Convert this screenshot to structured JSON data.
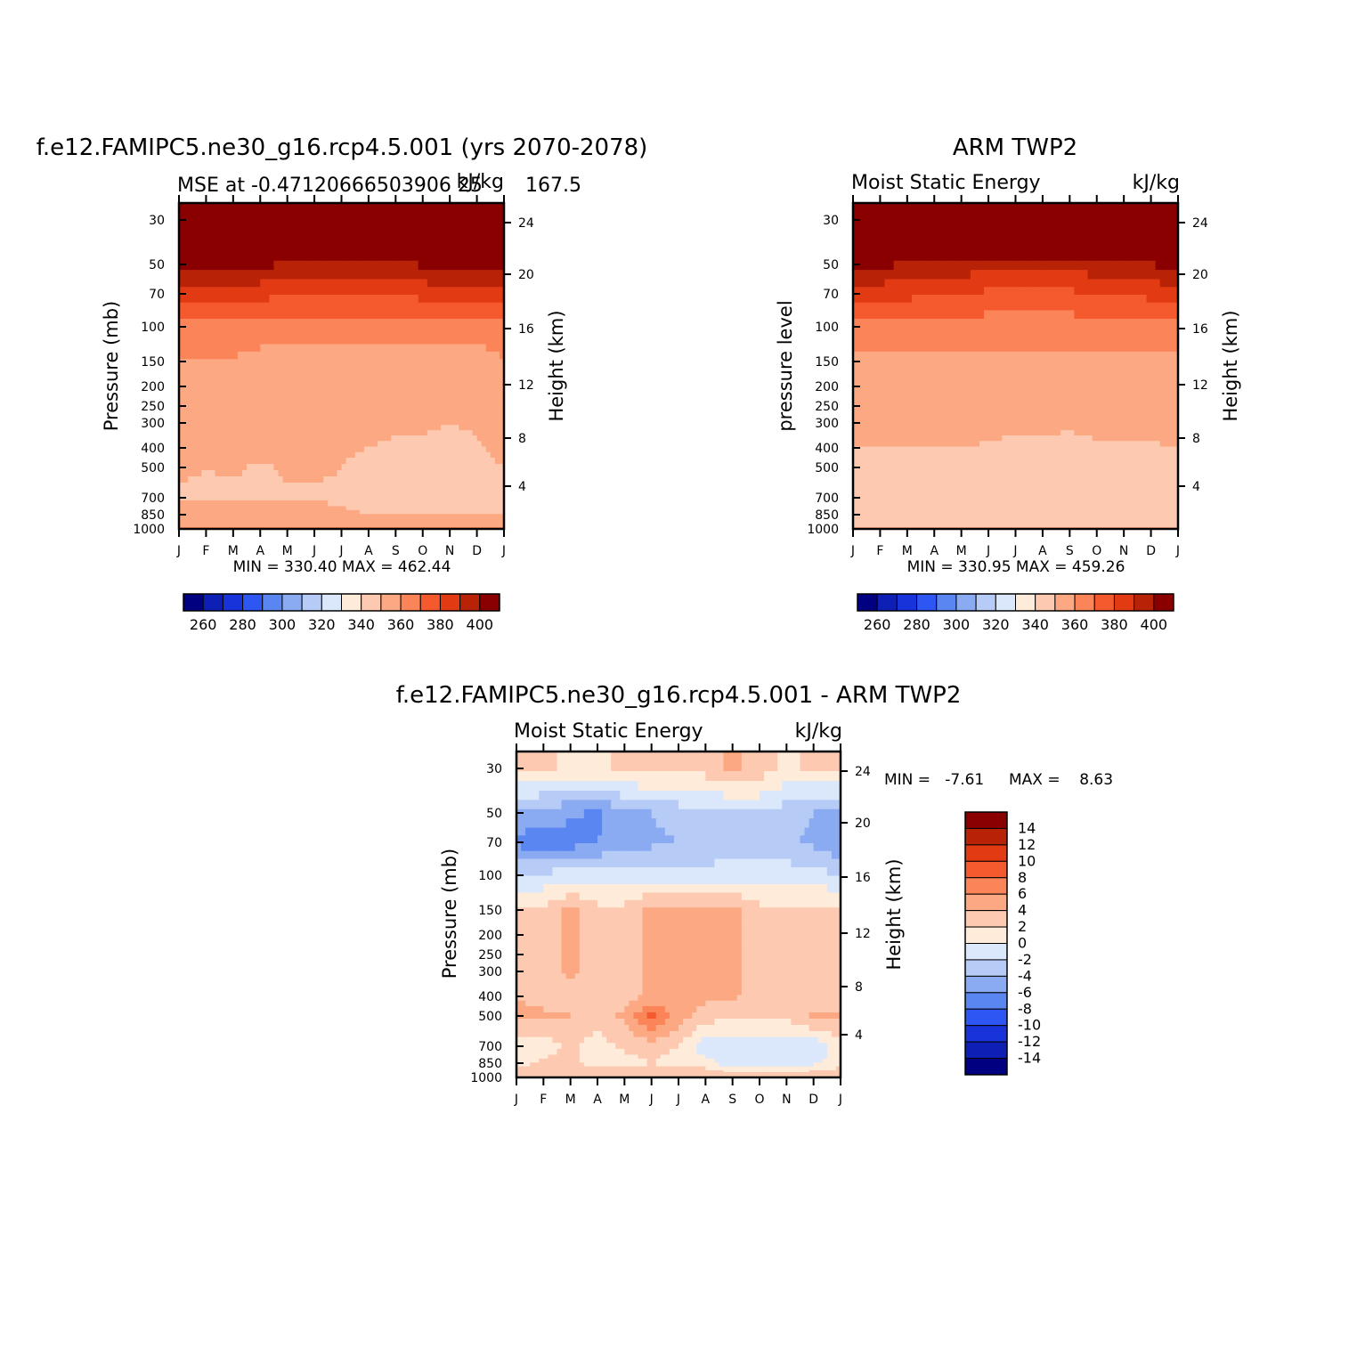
{
  "chart_data": [
    {
      "type": "contour",
      "title": "f.e12.FAMIPC5.ne30_g16.rcp4.5.001 (yrs 2070-2078)",
      "subtitle_left": "MSE at -0.47120666503906 25",
      "subtitle_mid": "167.5",
      "subtitle_right": "kJ/kg",
      "ylabel": "Pressure (mb)",
      "ylabel_right": "Height (km)",
      "months": [
        "J",
        "F",
        "M",
        "A",
        "M",
        "J",
        "J",
        "A",
        "S",
        "O",
        "N",
        "D",
        "J"
      ],
      "pressure_ticks": [
        "30",
        "50",
        "70",
        "100",
        "150",
        "200",
        "250",
        "300",
        "400",
        "500",
        "700",
        "850",
        "1000"
      ],
      "height_ticks": [
        "24",
        "20",
        "16",
        "12",
        "8",
        "4"
      ],
      "stats": "MIN = 330.40   MAX = 462.44",
      "colorbar_labels": [
        "260",
        "280",
        "300",
        "320",
        "340",
        "360",
        "380",
        "400"
      ],
      "colors": [
        "#000080",
        "#0d1fb4",
        "#1733d9",
        "#2d56f2",
        "#5a86f2",
        "#8aaaf2",
        "#b6cbf6",
        "#dbe8fb",
        "#feebd9",
        "#fdc9b0",
        "#fca882",
        "#fb8558",
        "#f55a2f",
        "#e23a12",
        "#b82307",
        "#8a0000"
      ],
      "contour_levels": [
        250,
        260,
        270,
        280,
        290,
        300,
        310,
        320,
        330,
        340,
        350,
        360,
        370,
        380,
        390,
        400
      ],
      "pressure_levels": [
        30,
        50,
        70,
        100,
        150,
        200,
        250,
        300,
        400,
        500,
        700,
        850,
        1000
      ],
      "values": [
        [
          460,
          460,
          460,
          460,
          460,
          460,
          460,
          460,
          460,
          460,
          460,
          460,
          460
        ],
        [
          396,
          395,
          394,
          392,
          389,
          386,
          386,
          386,
          388,
          391,
          393,
          395,
          396
        ],
        [
          377,
          376,
          375,
          373,
          371,
          369,
          369,
          369,
          371,
          373,
          375,
          376,
          377
        ],
        [
          357,
          356,
          356,
          356,
          356,
          356,
          356,
          356,
          356,
          355,
          355,
          356,
          357
        ],
        [
          349,
          349,
          349,
          346,
          344,
          344,
          344,
          344,
          344,
          343,
          342,
          344,
          350
        ],
        [
          347,
          347,
          347,
          346,
          345,
          345,
          345,
          345,
          345,
          344,
          344,
          345,
          347
        ],
        [
          346,
          346,
          346,
          345,
          344,
          344,
          344,
          343,
          343,
          342,
          342,
          343,
          346
        ],
        [
          345,
          345,
          345,
          344,
          344,
          344,
          343,
          342,
          341,
          341,
          340,
          341,
          345
        ],
        [
          344,
          344,
          344,
          343,
          342,
          342,
          341,
          340,
          339,
          339,
          338,
          339,
          343
        ],
        [
          341,
          340,
          341,
          339,
          341,
          341,
          340,
          338,
          337,
          337,
          336,
          337,
          340
        ],
        [
          339,
          339,
          338,
          339,
          339,
          339,
          339,
          338,
          336,
          336,
          336,
          336,
          338
        ],
        [
          345,
          344,
          344,
          344,
          344,
          343,
          341,
          340,
          340,
          340,
          340,
          340,
          340
        ],
        [
          351,
          351,
          351,
          351,
          351,
          351,
          351,
          351,
          351,
          351,
          351,
          351,
          351
        ]
      ],
      "colorbar_levels_shown": [
        260,
        280,
        300,
        320,
        340,
        360,
        380,
        400
      ]
    },
    {
      "type": "contour",
      "title": "ARM TWP2",
      "subtitle_left": "Moist Static Energy",
      "subtitle_right": "kJ/kg",
      "ylabel": "pressure level",
      "ylabel_right": "Height (km)",
      "months": [
        "J",
        "F",
        "M",
        "A",
        "M",
        "J",
        "J",
        "A",
        "S",
        "O",
        "N",
        "D",
        "J"
      ],
      "pressure_ticks": [
        "30",
        "50",
        "70",
        "100",
        "150",
        "200",
        "250",
        "300",
        "400",
        "500",
        "700",
        "850",
        "1000"
      ],
      "height_ticks": [
        "24",
        "20",
        "16",
        "12",
        "8",
        "4"
      ],
      "stats": "MIN = 330.95   MAX = 459.26",
      "colorbar_labels": [
        "260",
        "280",
        "300",
        "320",
        "340",
        "360",
        "380",
        "400"
      ],
      "colors": [
        "#000080",
        "#0d1fb4",
        "#1733d9",
        "#2d56f2",
        "#5a86f2",
        "#8aaaf2",
        "#b6cbf6",
        "#dbe8fb",
        "#feebd9",
        "#fdc9b0",
        "#fca882",
        "#fb8558",
        "#f55a2f",
        "#e23a12",
        "#b82307",
        "#8a0000"
      ],
      "contour_levels": [
        250,
        260,
        270,
        280,
        290,
        300,
        310,
        320,
        330,
        340,
        350,
        360,
        370,
        380,
        390,
        400
      ],
      "pressure_levels": [
        30,
        50,
        70,
        100,
        150,
        200,
        250,
        300,
        400,
        500,
        700,
        850,
        1000
      ],
      "values": [
        [
          459,
          459,
          459,
          459,
          459,
          459,
          459,
          459,
          459,
          459,
          459,
          459,
          459
        ],
        [
          392,
          391,
          390,
          388,
          386,
          384,
          384,
          383,
          384,
          386,
          388,
          390,
          392
        ],
        [
          375,
          374,
          373,
          371,
          370,
          368,
          368,
          367,
          368,
          370,
          371,
          373,
          375
        ],
        [
          355,
          355,
          355,
          355,
          355,
          355,
          355,
          355,
          355,
          355,
          355,
          355,
          355
        ],
        [
          348,
          348,
          348,
          348,
          348,
          348,
          348,
          348,
          348,
          348,
          348,
          348,
          348
        ],
        [
          346,
          346,
          346,
          346,
          346,
          346,
          346,
          346,
          346,
          346,
          346,
          346,
          346
        ],
        [
          345,
          345,
          345,
          345,
          345,
          345,
          345,
          345,
          345,
          345,
          345,
          345,
          345
        ],
        [
          343,
          343,
          343,
          343,
          343,
          343,
          342,
          342,
          341,
          342,
          342,
          343,
          343
        ],
        [
          340,
          340,
          340,
          340,
          340,
          339,
          338,
          338,
          338,
          339,
          339,
          339,
          340
        ],
        [
          337,
          337,
          337,
          337,
          337,
          337,
          336,
          336,
          336,
          336,
          336,
          336,
          337
        ],
        [
          336,
          336,
          336,
          336,
          336,
          336,
          336,
          336,
          336,
          336,
          336,
          336,
          336
        ],
        [
          335,
          335,
          335,
          335,
          335,
          335,
          335,
          335,
          335,
          335,
          335,
          335,
          335
        ],
        [
          341,
          341,
          341,
          341,
          341,
          341,
          341,
          341,
          341,
          341,
          341,
          341,
          341
        ]
      ],
      "colorbar_levels_shown": [
        260,
        280,
        300,
        320,
        340,
        360,
        380,
        400
      ]
    },
    {
      "type": "contour",
      "title": "f.e12.FAMIPC5.ne30_g16.rcp4.5.001 - ARM TWP2",
      "subtitle_left": "Moist Static Energy",
      "subtitle_right": "kJ/kg",
      "ylabel": "Pressure (mb)",
      "ylabel_right": "Height (km)",
      "months": [
        "J",
        "F",
        "M",
        "A",
        "M",
        "J",
        "J",
        "A",
        "S",
        "O",
        "N",
        "D",
        "J"
      ],
      "pressure_ticks": [
        "30",
        "50",
        "70",
        "100",
        "150",
        "200",
        "250",
        "300",
        "400",
        "500",
        "700",
        "850",
        "1000"
      ],
      "height_ticks": [
        "24",
        "20",
        "16",
        "12",
        "8",
        "4"
      ],
      "stats_min": "MIN =   -7.61",
      "stats_max": "MAX =    8.63",
      "colorbar_labels": [
        "14",
        "12",
        "10",
        "8",
        "6",
        "4",
        "2",
        "0",
        "-2",
        "-4",
        "-6",
        "-8",
        "-10",
        "-12",
        "-14"
      ],
      "colors_top_to_bottom": [
        "#8a0000",
        "#b82307",
        "#e23a12",
        "#f55a2f",
        "#fb8558",
        "#fca882",
        "#fdc9b0",
        "#feebd9",
        "#dbe8fb",
        "#b6cbf6",
        "#8aaaf2",
        "#5a86f2",
        "#2d56f2",
        "#1733d9",
        "#0d1fb4",
        "#000080"
      ],
      "contour_levels": [
        -14,
        -12,
        -10,
        -8,
        -6,
        -4,
        -2,
        0,
        2,
        4,
        6,
        8,
        10,
        12,
        14
      ],
      "pressure_levels": [
        30,
        50,
        70,
        100,
        150,
        200,
        250,
        300,
        400,
        500,
        700,
        850,
        1000
      ],
      "values": [
        [
          2.5,
          2.5,
          1.5,
          1.5,
          2.5,
          3.0,
          2.5,
          3.0,
          4.5,
          3.0,
          1.5,
          2.5,
          2.5
        ],
        [
          -4.5,
          -5.0,
          -5.5,
          -6.5,
          -4.5,
          -4.0,
          -3.0,
          -3.0,
          -2.5,
          -2.0,
          -3.0,
          -4.0,
          -4.5
        ],
        [
          -6.5,
          -7.5,
          -7.0,
          -6.0,
          -5.0,
          -4.5,
          -4.0,
          -4.0,
          -3.0,
          -3.5,
          -3.5,
          -4.5,
          -6.0
        ],
        [
          -2.0,
          -1.5,
          -1.0,
          -1.0,
          -1.0,
          -1.0,
          -1.0,
          -1.0,
          -1.0,
          -1.0,
          -1.0,
          -1.0,
          -2.0
        ],
        [
          2.5,
          2.5,
          4.5,
          2.5,
          2.5,
          4.5,
          5.0,
          4.5,
          4.5,
          2.5,
          2.5,
          2.5,
          2.5
        ],
        [
          2.5,
          2.5,
          5.0,
          2.5,
          2.5,
          5.0,
          5.0,
          5.0,
          5.0,
          2.5,
          2.5,
          2.5,
          2.5
        ],
        [
          2.5,
          2.5,
          4.5,
          2.5,
          2.5,
          4.5,
          5.0,
          5.0,
          4.5,
          2.5,
          2.5,
          2.5,
          2.5
        ],
        [
          2.5,
          2.5,
          4.5,
          3.0,
          2.5,
          4.5,
          5.0,
          5.0,
          4.5,
          2.5,
          2.5,
          2.5,
          2.5
        ],
        [
          4.0,
          3.0,
          2.5,
          2.5,
          3.0,
          4.5,
          4.5,
          4.5,
          4.5,
          2.5,
          2.5,
          2.5,
          2.5
        ],
        [
          4.5,
          4.5,
          4.0,
          3.0,
          4.5,
          8.5,
          5.0,
          3.0,
          2.5,
          2.5,
          2.5,
          4.5,
          4.5
        ],
        [
          1.0,
          1.0,
          2.5,
          1.0,
          2.5,
          3.0,
          2.0,
          -1.5,
          -1.5,
          -1.5,
          -1.5,
          -1.5,
          1.0
        ],
        [
          1.0,
          2.5,
          2.5,
          1.0,
          1.0,
          2.0,
          1.0,
          1.0,
          -1.5,
          -1.5,
          -1.0,
          -0.5,
          1.0
        ],
        [
          4.0,
          4.0,
          4.0,
          4.0,
          4.0,
          4.0,
          4.0,
          4.0,
          4.0,
          4.0,
          4.0,
          4.0,
          4.0
        ]
      ]
    }
  ]
}
